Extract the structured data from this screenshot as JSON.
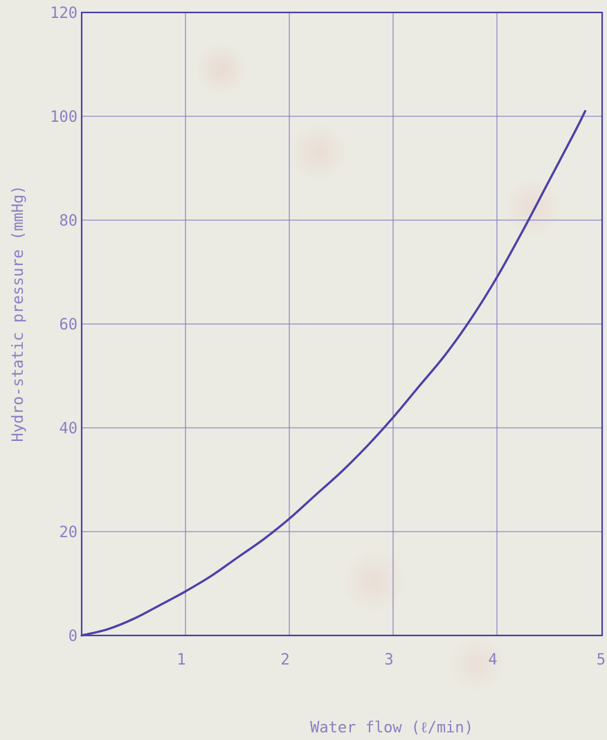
{
  "chart_data": {
    "type": "line",
    "title": "",
    "xlabel": "Water flow (ℓ/min)",
    "ylabel": "Hydro-static pressure  (mmHg)",
    "xlim": [
      0,
      5
    ],
    "ylim": [
      0,
      120
    ],
    "x_ticks": [
      "1",
      "2",
      "3",
      "4",
      "5"
    ],
    "y_ticks": [
      "0",
      "20",
      "40",
      "60",
      "80",
      "100",
      "120"
    ],
    "grid": true,
    "legend": "none",
    "series": [
      {
        "x": [
          0,
          0.25,
          0.5,
          0.75,
          1.0,
          1.25,
          1.5,
          1.75,
          2.0,
          2.25,
          2.5,
          2.75,
          3.0,
          3.25,
          3.5,
          3.75,
          4.0,
          4.25,
          4.5,
          4.75,
          4.85
        ],
        "values": [
          0,
          1.2,
          3.2,
          5.8,
          8.5,
          11.5,
          15.0,
          18.5,
          22.5,
          27.0,
          31.5,
          36.5,
          42.0,
          48.0,
          54.0,
          61.0,
          69.0,
          78.0,
          87.5,
          97.0,
          101.0
        ]
      }
    ],
    "colors": {
      "line": "#4b40a8",
      "grid": "#8f86c9",
      "text": "#8a7fc4"
    }
  }
}
